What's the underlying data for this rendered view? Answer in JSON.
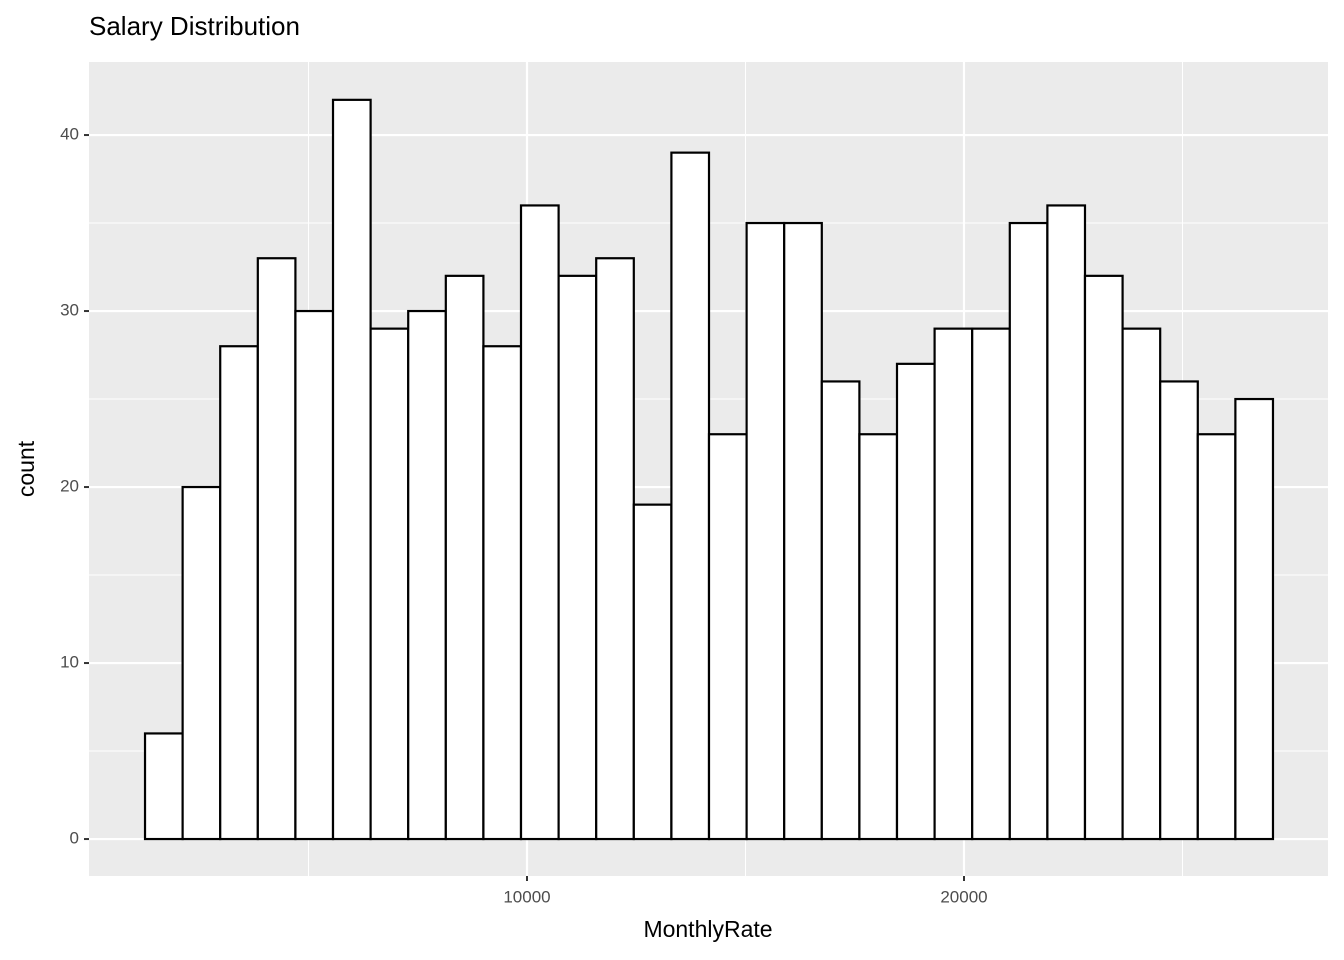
{
  "chart_data": {
    "type": "histogram",
    "title": "Salary Distribution",
    "x_label": "MonthlyRate",
    "y_label": "count",
    "bins": [
      1259.0,
      2119.4,
      2979.8,
      3840.2,
      4700.6,
      5561.0,
      6421.4,
      7281.8,
      8142.2,
      9002.6,
      9863.0,
      10723.4,
      11583.8,
      12444.2,
      13304.6,
      14165.0,
      15025.4,
      15885.8,
      16746.2,
      17606.6,
      18467.0,
      19327.4,
      20187.8,
      21048.2,
      21908.6,
      22769.0,
      23629.4,
      24489.8,
      25350.2,
      26210.6,
      27071.0
    ],
    "values": [
      6,
      20,
      28,
      33,
      30,
      42,
      29,
      30,
      32,
      28,
      36,
      32,
      33,
      19,
      39,
      23,
      35,
      35,
      26,
      23,
      27,
      29,
      29,
      35,
      36,
      32,
      29,
      26,
      23,
      25
    ],
    "color": "#ffffff",
    "edge_color": "#000000",
    "xlim": [
      -23,
      28330
    ],
    "xticks": [
      10000,
      20000
    ],
    "ylim": [
      -2.1,
      44.15
    ],
    "yticks": [
      0,
      10,
      20,
      30,
      40
    ],
    "grid": true
  }
}
